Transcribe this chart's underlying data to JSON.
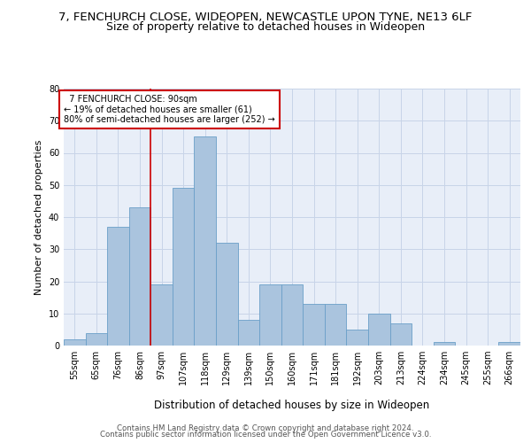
{
  "title": "7, FENCHURCH CLOSE, WIDEOPEN, NEWCASTLE UPON TYNE, NE13 6LF",
  "subtitle": "Size of property relative to detached houses in Wideopen",
  "xlabel": "Distribution of detached houses by size in Wideopen",
  "ylabel": "Number of detached properties",
  "footer_line1": "Contains HM Land Registry data © Crown copyright and database right 2024.",
  "footer_line2": "Contains public sector information licensed under the Open Government Licence v3.0.",
  "annotation_line1": "7 FENCHURCH CLOSE: 90sqm",
  "annotation_line2": "← 19% of detached houses are smaller (61)",
  "annotation_line3": "80% of semi-detached houses are larger (252) →",
  "bin_labels": [
    "55sqm",
    "65sqm",
    "76sqm",
    "86sqm",
    "97sqm",
    "107sqm",
    "118sqm",
    "129sqm",
    "139sqm",
    "150sqm",
    "160sqm",
    "171sqm",
    "181sqm",
    "192sqm",
    "203sqm",
    "213sqm",
    "224sqm",
    "234sqm",
    "245sqm",
    "255sqm",
    "266sqm"
  ],
  "bar_values": [
    2,
    4,
    37,
    43,
    19,
    49,
    65,
    32,
    8,
    19,
    19,
    13,
    13,
    5,
    10,
    7,
    0,
    1,
    0,
    0,
    1
  ],
  "bar_color": "#aac4de",
  "bar_edge_color": "#6a9fc8",
  "red_line_x": 3.5,
  "red_line_color": "#cc0000",
  "annotation_box_color": "#cc0000",
  "ylim": [
    0,
    80
  ],
  "yticks": [
    0,
    10,
    20,
    30,
    40,
    50,
    60,
    70,
    80
  ],
  "grid_color": "#c8d4e8",
  "plot_bg_color": "#e8eef8",
  "title_fontsize": 9.5,
  "subtitle_fontsize": 9
}
